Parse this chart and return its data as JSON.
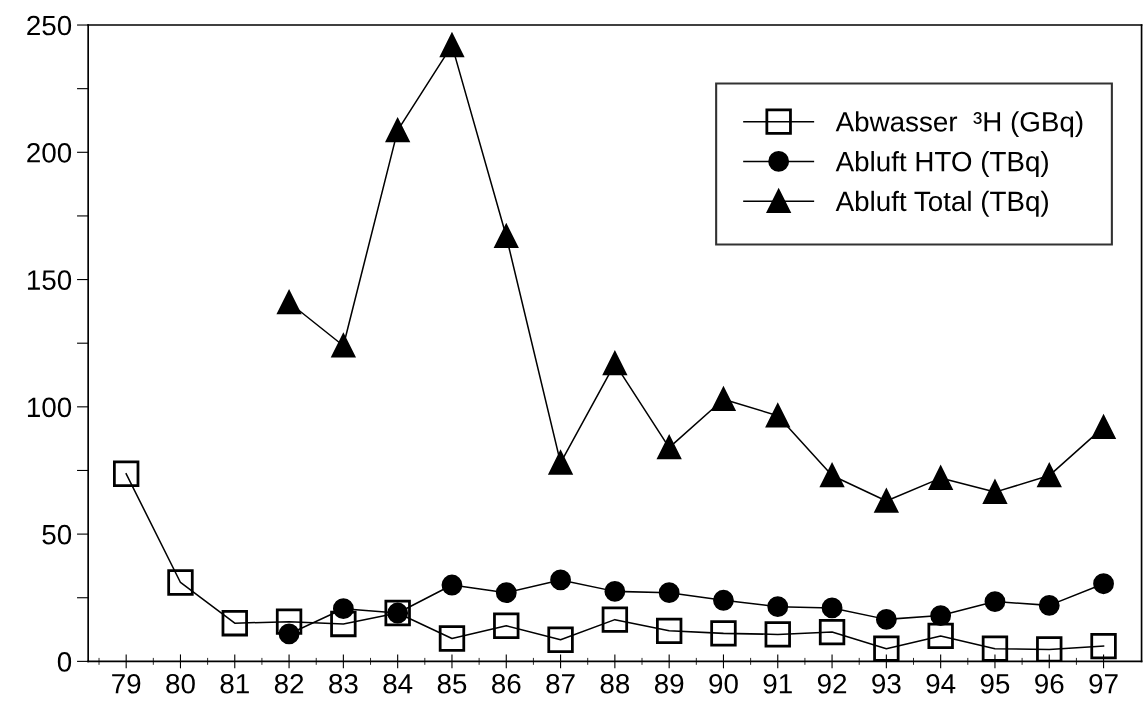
{
  "chart_data": {
    "type": "line",
    "categories": [
      "79",
      "80",
      "81",
      "82",
      "83",
      "84",
      "85",
      "86",
      "87",
      "88",
      "89",
      "90",
      "91",
      "92",
      "93",
      "94",
      "95",
      "96",
      "97"
    ],
    "series": [
      {
        "name": "Abwasser  ³H (GBq)",
        "color": "#000000",
        "marker": "square",
        "values": [
          73.7,
          31,
          15,
          15.6,
          14.7,
          19,
          9,
          14,
          8.5,
          16.4,
          12,
          11,
          10.6,
          11.5,
          5,
          10,
          5,
          4.7,
          6
        ]
      },
      {
        "name": "Abluft HTO (TBq)",
        "color": "#000000",
        "marker": "circle",
        "values": [
          null,
          null,
          null,
          10.8,
          20.7,
          19,
          30,
          27,
          32,
          27.5,
          27,
          24,
          21.5,
          21,
          16.5,
          18,
          23.5,
          22,
          30.5
        ]
      },
      {
        "name": "Abluft Total (TBq)",
        "color": "#000000",
        "marker": "triangle",
        "values": [
          null,
          null,
          null,
          141,
          124,
          208.6,
          242,
          167,
          78,
          117,
          84,
          103,
          96.5,
          73,
          63,
          72,
          66.5,
          73,
          92
        ]
      }
    ],
    "ylim": [
      0,
      250
    ],
    "yticks": [
      0,
      {
        "value": 25,
        "label": null
      },
      50,
      {
        "value": 75,
        "label": null
      },
      100,
      {
        "value": 125,
        "label": null
      },
      150,
      {
        "value": 175,
        "label": null
      },
      200,
      {
        "value": 225,
        "label": null
      },
      250
    ],
    "grid": false,
    "legend": "top right",
    "line_style": "solid"
  }
}
